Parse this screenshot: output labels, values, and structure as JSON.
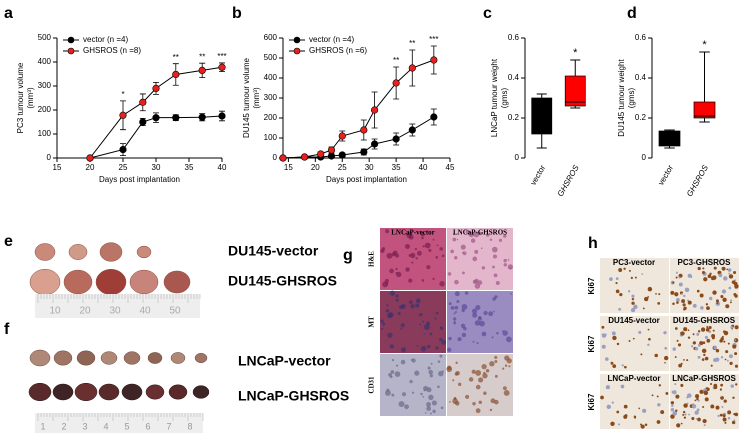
{
  "chart_data": [
    {
      "type": "line",
      "panel": "a",
      "ylabel": [
        "PC3 tumour volume",
        "(mm³)"
      ],
      "xlabel": "Days post implantation",
      "x": [
        20,
        25,
        28,
        30,
        33,
        37,
        40
      ],
      "series": [
        {
          "name": "vector (n =4)",
          "color": "#000000",
          "values": [
            0,
            35,
            150,
            168,
            168,
            170,
            175
          ],
          "errors": [
            0,
            25,
            15,
            20,
            12,
            15,
            20
          ]
        },
        {
          "name": "GHSROS (n =8)",
          "color": "#e8211f",
          "values": [
            0,
            178,
            232,
            290,
            348,
            365,
            378
          ],
          "errors": [
            0,
            60,
            35,
            25,
            45,
            30,
            18
          ]
        }
      ],
      "annotations": [
        {
          "x": 25,
          "text": "*"
        },
        {
          "x": 33,
          "text": "**"
        },
        {
          "x": 37,
          "text": "**"
        },
        {
          "x": 40,
          "text": "***"
        }
      ],
      "xlim": [
        15,
        40
      ],
      "xticks": [
        15,
        20,
        25,
        30,
        35,
        40
      ],
      "ylim": [
        0,
        500
      ],
      "yticks": [
        0,
        100,
        200,
        300,
        400,
        500
      ]
    },
    {
      "type": "line",
      "panel": "b",
      "ylabel": [
        "DU145 tumour volume",
        "(mm³)"
      ],
      "xlabel": "Days post implantation",
      "x": [
        14,
        18,
        21,
        23,
        25,
        29,
        31,
        35,
        38,
        42
      ],
      "series": [
        {
          "name": "vector (n =4)",
          "color": "#000000",
          "values": [
            0,
            5,
            5,
            10,
            15,
            30,
            70,
            95,
            140,
            205
          ],
          "errors": [
            0,
            3,
            5,
            5,
            10,
            15,
            25,
            30,
            30,
            40
          ]
        },
        {
          "name": "GHSROS (n =6)",
          "color": "#e8211f",
          "values": [
            0,
            5,
            20,
            40,
            110,
            140,
            240,
            375,
            450,
            490
          ],
          "errors": [
            0,
            5,
            10,
            15,
            25,
            50,
            90,
            80,
            90,
            70
          ]
        }
      ],
      "annotations": [
        {
          "x": 35,
          "text": "**"
        },
        {
          "x": 38,
          "text": "**"
        },
        {
          "x": 42,
          "text": "***"
        }
      ],
      "xlim": [
        14,
        45
      ],
      "xticks": [
        15,
        20,
        25,
        30,
        35,
        40,
        45
      ],
      "ylim": [
        0,
        600
      ],
      "yticks": [
        0,
        100,
        200,
        300,
        400,
        500,
        600
      ]
    },
    {
      "type": "box",
      "panel": "c",
      "ylabel": [
        "LNCaP tumour weight",
        "(gms)"
      ],
      "categories": [
        "vector",
        "GHSROS"
      ],
      "boxes": [
        {
          "color": "#000000",
          "min": 0.05,
          "q1": 0.12,
          "median": 0.29,
          "q3": 0.3,
          "max": 0.32
        },
        {
          "color": "#ff0000",
          "min": 0.25,
          "q1": 0.26,
          "median": 0.28,
          "q3": 0.41,
          "max": 0.49
        }
      ],
      "annotations": [
        {
          "category": 1,
          "text": "*"
        }
      ],
      "ylim": [
        0,
        0.6
      ],
      "yticks": [
        0,
        0.2,
        0.4,
        0.6
      ]
    },
    {
      "type": "box",
      "panel": "d",
      "ylabel": [
        "DU145 tumour weight",
        "(gms)"
      ],
      "categories": [
        "vector",
        "GHSROS"
      ],
      "boxes": [
        {
          "color": "#000000",
          "min": 0.05,
          "q1": 0.06,
          "median": 0.13,
          "q3": 0.135,
          "max": 0.14
        },
        {
          "color": "#ff0000",
          "min": 0.18,
          "q1": 0.2,
          "median": 0.21,
          "q3": 0.28,
          "max": 0.53
        }
      ],
      "annotations": [
        {
          "category": 1,
          "text": "*"
        }
      ],
      "ylim": [
        0,
        0.6
      ],
      "yticks": [
        0,
        0.2,
        0.4,
        0.6
      ]
    }
  ],
  "panels": {
    "e": {
      "letter": "e",
      "labels": [
        "DU145-vector",
        "DU145-GHSROS"
      ],
      "ruler": [
        "10",
        "20",
        "30",
        "40",
        "50"
      ]
    },
    "f": {
      "letter": "f",
      "labels": [
        "LNCaP-vector",
        "LNCaP-GHSROS"
      ],
      "ruler": [
        "1",
        "2",
        "3",
        "4",
        "5",
        "6",
        "7",
        "8"
      ]
    },
    "g": {
      "letter": "g",
      "columns": [
        "LNCaP-vector",
        "LNCaP-GHSROS"
      ],
      "rows": [
        "H&E",
        "MT",
        "CD31"
      ]
    },
    "h": {
      "letter": "h",
      "images": [
        [
          "PC3-vector",
          "PC3-GHSROS"
        ],
        [
          "DU145-vector",
          "DU145-GHSROS"
        ],
        [
          "LNCaP-vector",
          "LNCaP-GHSROS"
        ]
      ],
      "rows": [
        "Ki67",
        "Ki67",
        "Ki67"
      ]
    }
  }
}
